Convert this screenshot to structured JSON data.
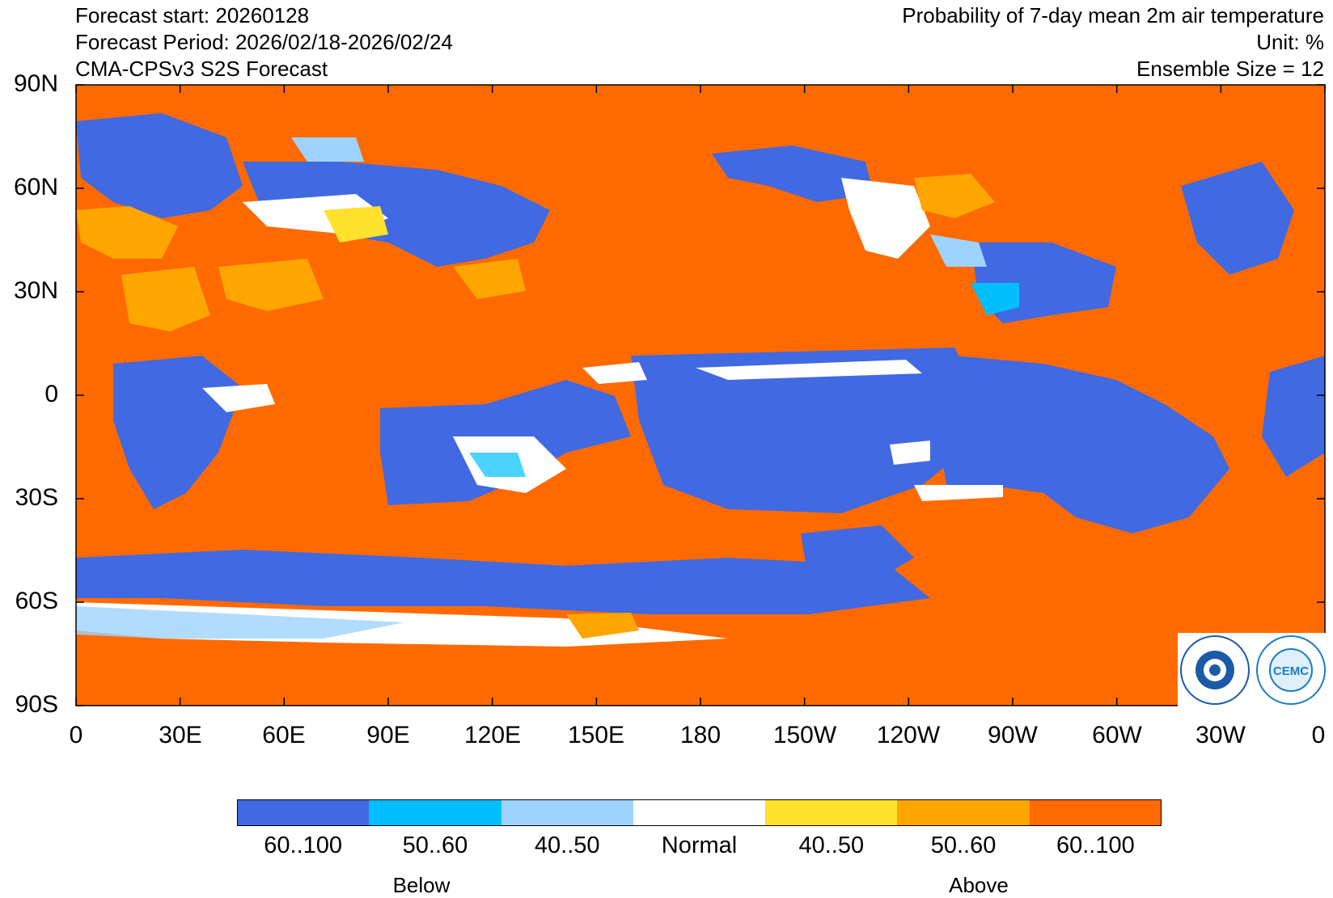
{
  "header": {
    "left": [
      "Forecast start: 20260128",
      "Forecast Period: 2026/02/18-2026/02/24",
      "CMA-CPSv3 S2S Forecast"
    ],
    "right": [
      "Probability of 7-day mean 2m air temperature",
      "Unit: %",
      "Ensemble Size = 12"
    ]
  },
  "map": {
    "y_ticks": [
      "90N",
      "60N",
      "30N",
      "0",
      "30S",
      "60S",
      "90S"
    ],
    "x_ticks": [
      "0",
      "30E",
      "60E",
      "90E",
      "120E",
      "150E",
      "180",
      "150W",
      "120W",
      "90W",
      "60W",
      "30W",
      "0"
    ],
    "background_color": "#ff6a00"
  },
  "legend": {
    "items": [
      {
        "label": "60..100",
        "color": "#4169e1"
      },
      {
        "label": "50..60",
        "color": "#00bfff"
      },
      {
        "label": "40..50",
        "color": "#9fd3ff"
      },
      {
        "label": "Normal",
        "color": "#ffffff"
      },
      {
        "label": "40..50",
        "color": "#ffe12e"
      },
      {
        "label": "50..60",
        "color": "#ffa500"
      },
      {
        "label": "60..100",
        "color": "#ff6a00"
      }
    ],
    "groups": {
      "below": "Below",
      "above": "Above"
    }
  },
  "logos": [
    {
      "name": "cma-logo",
      "color": "#1a5aa8"
    },
    {
      "name": "cemc-logo",
      "text": "CEMC",
      "color": "#1a7cc8"
    }
  ]
}
